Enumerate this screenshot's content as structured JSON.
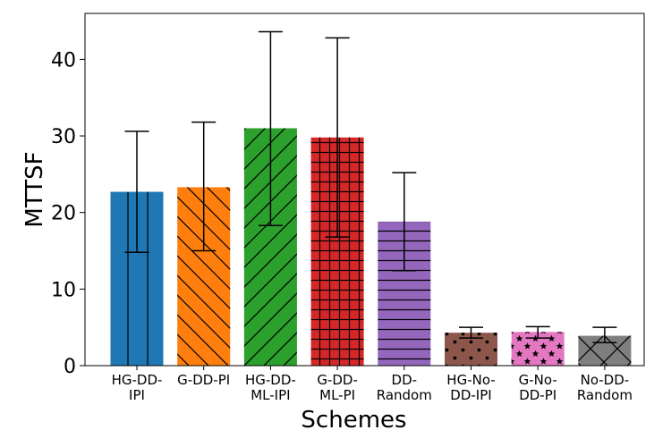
{
  "chart_data": {
    "type": "bar",
    "title": "",
    "xlabel": "Schemes",
    "ylabel": "MTTSF",
    "ylim": [
      0,
      46
    ],
    "yticks": [
      0,
      10,
      20,
      30,
      40
    ],
    "grid": false,
    "categories": [
      [
        "HG-DD-",
        "IPI"
      ],
      [
        "G-DD-PI"
      ],
      [
        "HG-DD-",
        "ML-IPI"
      ],
      [
        "G-DD-",
        "ML-PI"
      ],
      [
        "DD-",
        "Random"
      ],
      [
        "HG-No-",
        "DD-IPI"
      ],
      [
        "G-No-",
        "DD-PI"
      ],
      [
        "No-DD-",
        "Random"
      ]
    ],
    "values": [
      22.7,
      23.3,
      31.0,
      29.8,
      18.8,
      4.3,
      4.4,
      3.9
    ],
    "errors": [
      [
        14.8,
        30.6
      ],
      [
        15.0,
        31.8
      ],
      [
        18.3,
        43.6
      ],
      [
        16.8,
        42.8
      ],
      [
        12.4,
        25.2
      ],
      [
        3.6,
        5.0
      ],
      [
        3.6,
        5.1
      ],
      [
        3.0,
        5.0
      ]
    ],
    "colors": [
      "#1f77b4",
      "#ff7f0e",
      "#2ca02c",
      "#d62728",
      "#9467bd",
      "#8c564b",
      "#e377c2",
      "#7f7f7f"
    ],
    "hatches": [
      "vertical",
      "backslash",
      "slash",
      "grid",
      "horizontal",
      "dots",
      "stars",
      "cross"
    ]
  }
}
